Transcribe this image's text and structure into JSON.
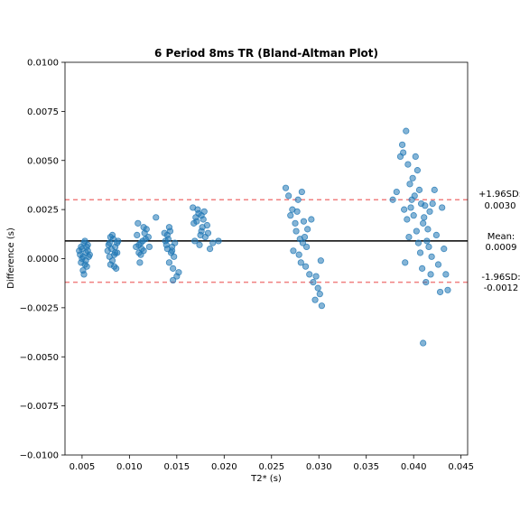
{
  "chart_data": {
    "type": "scatter",
    "title": "6 Period 8ms TR (Bland-Altman Plot)",
    "xlabel": "T2* (s)",
    "ylabel": "Difference (s)",
    "xlim": [
      0.0032,
      0.0457
    ],
    "ylim": [
      -0.01,
      0.01
    ],
    "xticks": [
      0.005,
      0.01,
      0.015,
      0.02,
      0.025,
      0.03,
      0.035,
      0.04,
      0.045
    ],
    "xtick_labels": [
      "0.005",
      "0.010",
      "0.015",
      "0.020",
      "0.025",
      "0.030",
      "0.035",
      "0.040",
      "0.045"
    ],
    "yticks": [
      -0.01,
      -0.0075,
      -0.005,
      -0.0025,
      0.0,
      0.0025,
      0.005,
      0.0075,
      0.01
    ],
    "ytick_labels": [
      "−0.0100",
      "−0.0075",
      "−0.0050",
      "−0.0025",
      "0.0000",
      "0.0025",
      "0.0050",
      "0.0075",
      "0.0100"
    ],
    "grid": false,
    "point_color": "#1f77b4",
    "mean_line": {
      "value": 0.0009,
      "color": "#000000",
      "label_line1": "Mean:",
      "label_line2": "0.0009"
    },
    "upper_loa": {
      "value": 0.003,
      "color": "#f08080",
      "label_line1": "+1.96SD:",
      "label_line2": "0.0030"
    },
    "lower_loa": {
      "value": -0.0012,
      "color": "#f08080",
      "label_line1": "-1.96SD:",
      "label_line2": "-0.0012"
    },
    "series": [
      {
        "values": [
          [
            0.0048,
            0.0002
          ],
          [
            0.0052,
            0.0008
          ],
          [
            0.0055,
            -0.0004
          ],
          [
            0.005,
            0.0005
          ],
          [
            0.0057,
            0.0001
          ],
          [
            0.0049,
            -0.0002
          ],
          [
            0.0053,
            0.0009
          ],
          [
            0.0056,
            0.0004
          ],
          [
            0.0051,
            -0.0006
          ],
          [
            0.0054,
            0.0003
          ],
          [
            0.005,
            0.0
          ],
          [
            0.0055,
            0.0006
          ],
          [
            0.0052,
            -0.0008
          ],
          [
            0.0058,
            0.0002
          ],
          [
            0.0047,
            0.0004
          ],
          [
            0.0053,
            -0.0003
          ],
          [
            0.0056,
            0.0007
          ],
          [
            0.0051,
            0.0001
          ],
          [
            0.0049,
            0.0006
          ],
          [
            0.0054,
            -0.0001
          ],
          [
            0.0078,
            0.0007
          ],
          [
            0.0082,
            0.0012
          ],
          [
            0.0085,
            0.0003
          ],
          [
            0.008,
            -0.0003
          ],
          [
            0.0087,
            0.0008
          ],
          [
            0.0079,
            0.0001
          ],
          [
            0.0083,
            0.001
          ],
          [
            0.0086,
            -0.0005
          ],
          [
            0.0081,
            0.0005
          ],
          [
            0.0084,
            0.0002
          ],
          [
            0.0077,
            0.0004
          ],
          [
            0.0088,
            0.0009
          ],
          [
            0.0082,
            -0.0001
          ],
          [
            0.0085,
            0.0006
          ],
          [
            0.008,
            0.0011
          ],
          [
            0.0084,
            -0.0004
          ],
          [
            0.0079,
            0.0008
          ],
          [
            0.0087,
            0.0003
          ],
          [
            0.0108,
            0.0012
          ],
          [
            0.0112,
            0.0008
          ],
          [
            0.0115,
            0.0016
          ],
          [
            0.011,
            0.0003
          ],
          [
            0.0117,
            0.001
          ],
          [
            0.0109,
            0.0018
          ],
          [
            0.0113,
            0.0005
          ],
          [
            0.0116,
            0.0013
          ],
          [
            0.0111,
            -0.0002
          ],
          [
            0.0114,
            0.0009
          ],
          [
            0.0107,
            0.0006
          ],
          [
            0.0118,
            0.0015
          ],
          [
            0.0112,
            0.0002
          ],
          [
            0.012,
            0.0011
          ],
          [
            0.011,
            0.0007
          ],
          [
            0.0115,
            0.0004
          ],
          [
            0.0128,
            0.0021
          ],
          [
            0.0121,
            0.0006
          ],
          [
            0.0138,
            0.0009
          ],
          [
            0.0142,
            0.0016
          ],
          [
            0.0145,
            0.0004
          ],
          [
            0.014,
            0.0012
          ],
          [
            0.0147,
            0.0001
          ],
          [
            0.0139,
            0.0007
          ],
          [
            0.0143,
            0.0014
          ],
          [
            0.0146,
            -0.0005
          ],
          [
            0.0141,
            0.001
          ],
          [
            0.0144,
            0.0003
          ],
          [
            0.0137,
            0.0013
          ],
          [
            0.0148,
            0.0008
          ],
          [
            0.0142,
            -0.0002
          ],
          [
            0.0145,
            0.0006
          ],
          [
            0.015,
            -0.0009
          ],
          [
            0.0152,
            -0.0007
          ],
          [
            0.0146,
            -0.0011
          ],
          [
            0.014,
            0.0005
          ],
          [
            0.0168,
            0.0018
          ],
          [
            0.0172,
            0.0025
          ],
          [
            0.0175,
            0.0012
          ],
          [
            0.017,
            0.0021
          ],
          [
            0.0177,
            0.0016
          ],
          [
            0.0169,
            0.0009
          ],
          [
            0.0173,
            0.0023
          ],
          [
            0.0176,
            0.0014
          ],
          [
            0.0171,
            0.0019
          ],
          [
            0.0174,
            0.0007
          ],
          [
            0.0167,
            0.0026
          ],
          [
            0.0178,
            0.002
          ],
          [
            0.018,
            0.0011
          ],
          [
            0.0182,
            0.0017
          ],
          [
            0.0179,
            0.0024
          ],
          [
            0.0183,
            0.0013
          ],
          [
            0.0185,
            0.0005
          ],
          [
            0.0188,
            0.0008
          ],
          [
            0.0194,
            0.0009
          ],
          [
            0.0176,
            0.0022
          ],
          [
            0.0265,
            0.0036
          ],
          [
            0.0268,
            0.0032
          ],
          [
            0.0272,
            0.0025
          ],
          [
            0.0275,
            0.0018
          ],
          [
            0.0278,
            0.003
          ],
          [
            0.027,
            0.0022
          ],
          [
            0.0282,
            0.0034
          ],
          [
            0.0276,
            0.0014
          ],
          [
            0.028,
            0.001
          ],
          [
            0.0273,
            0.0004
          ],
          [
            0.0284,
            0.0019
          ],
          [
            0.0279,
            0.0002
          ],
          [
            0.0286,
            -0.0004
          ],
          [
            0.0283,
            0.0008
          ],
          [
            0.0288,
            0.0015
          ],
          [
            0.029,
            -0.0008
          ],
          [
            0.0292,
            0.002
          ],
          [
            0.0281,
            -0.0002
          ],
          [
            0.0287,
            0.0006
          ],
          [
            0.0294,
            -0.0012
          ],
          [
            0.0296,
            -0.0021
          ],
          [
            0.0299,
            -0.0015
          ],
          [
            0.0302,
            -0.0001
          ],
          [
            0.0303,
            -0.0024
          ],
          [
            0.0301,
            -0.0018
          ],
          [
            0.0297,
            -0.0009
          ],
          [
            0.0277,
            0.0024
          ],
          [
            0.0285,
            0.0011
          ],
          [
            0.0378,
            0.003
          ],
          [
            0.0382,
            0.0034
          ],
          [
            0.0386,
            0.0052
          ],
          [
            0.0388,
            0.0058
          ],
          [
            0.0392,
            0.0065
          ],
          [
            0.039,
            0.0025
          ],
          [
            0.0394,
            0.0048
          ],
          [
            0.0396,
            0.0038
          ],
          [
            0.0398,
            0.003
          ],
          [
            0.04,
            0.0022
          ],
          [
            0.0402,
            0.0052
          ],
          [
            0.0404,
            0.0045
          ],
          [
            0.0406,
            0.0035
          ],
          [
            0.0408,
            0.0028
          ],
          [
            0.041,
            0.0018
          ],
          [
            0.0395,
            0.0011
          ],
          [
            0.0397,
            0.0026
          ],
          [
            0.0401,
            0.0032
          ],
          [
            0.0403,
            0.0014
          ],
          [
            0.0405,
            0.0008
          ],
          [
            0.0407,
            0.0003
          ],
          [
            0.0409,
            -0.0005
          ],
          [
            0.0411,
            0.0021
          ],
          [
            0.0412,
            0.0027
          ],
          [
            0.0413,
            -0.0012
          ],
          [
            0.0415,
            0.0015
          ],
          [
            0.0416,
            0.0006
          ],
          [
            0.0418,
            -0.0008
          ],
          [
            0.042,
            0.0028
          ],
          [
            0.0422,
            0.0035
          ],
          [
            0.0424,
            0.0012
          ],
          [
            0.0426,
            -0.0003
          ],
          [
            0.0428,
            -0.0017
          ],
          [
            0.043,
            0.0026
          ],
          [
            0.0432,
            0.0005
          ],
          [
            0.0434,
            -0.0008
          ],
          [
            0.0436,
            -0.0016
          ],
          [
            0.041,
            -0.0043
          ],
          [
            0.0391,
            -0.0002
          ],
          [
            0.0399,
            0.0041
          ],
          [
            0.0414,
            0.0009
          ],
          [
            0.0389,
            0.0054
          ],
          [
            0.0393,
            0.002
          ],
          [
            0.0417,
            0.0024
          ],
          [
            0.0419,
            0.0001
          ]
        ]
      }
    ]
  }
}
